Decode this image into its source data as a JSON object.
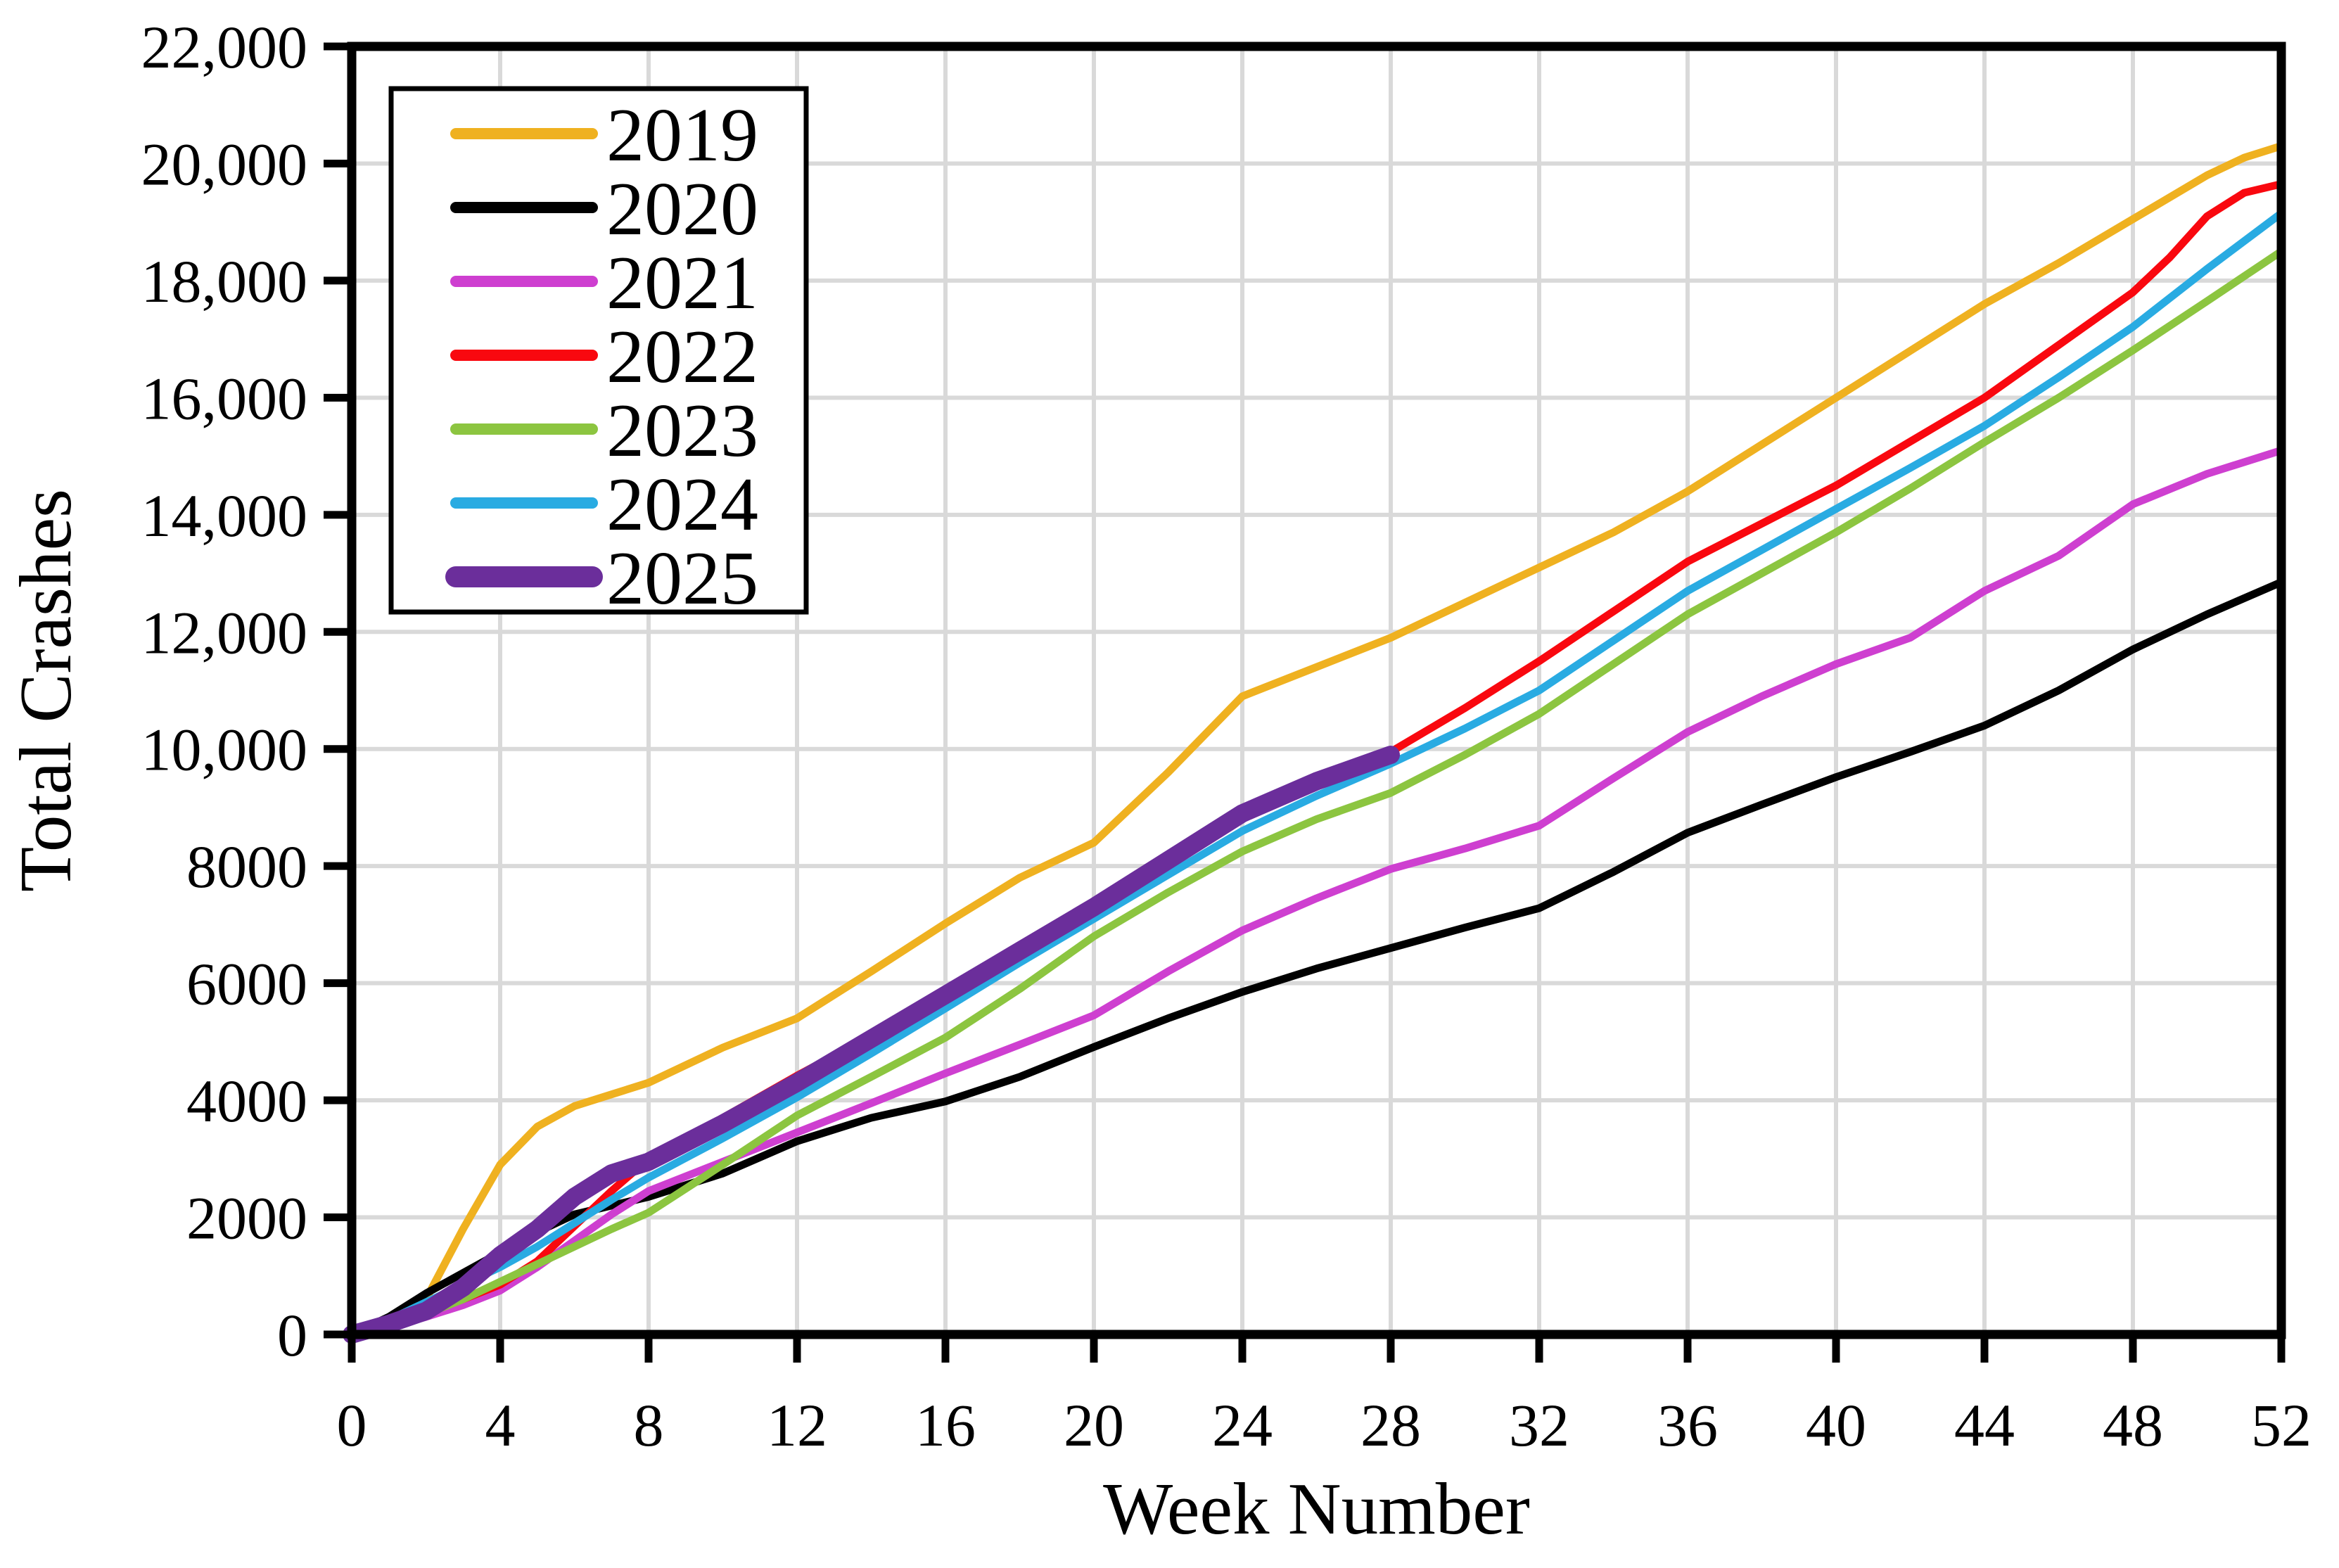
{
  "chart_data": {
    "type": "line",
    "title": "",
    "xlabel": "Week Number",
    "ylabel": "Total Crashes",
    "xlim": [
      0,
      52
    ],
    "ylim": [
      0,
      22000
    ],
    "grid": true,
    "grid_color": "#d9d9d9",
    "axis_color": "#000000",
    "legend_position": "upper-left",
    "x_ticks": [
      0,
      4,
      8,
      12,
      16,
      20,
      24,
      28,
      32,
      36,
      40,
      44,
      48,
      52
    ],
    "x_tick_labels": [
      "0",
      "4",
      "8",
      "12",
      "16",
      "20",
      "24",
      "28",
      "32",
      "36",
      "40",
      "44",
      "48",
      "52"
    ],
    "y_ticks": [
      0,
      2000,
      4000,
      6000,
      8000,
      10000,
      12000,
      14000,
      16000,
      18000,
      20000,
      22000
    ],
    "y_tick_labels": [
      "0",
      "2000",
      "4000",
      "6000",
      "8000",
      "10,000",
      "12,000",
      "14,000",
      "16,000",
      "18,000",
      "20,000",
      "22,000"
    ],
    "series": [
      {
        "name": "2019",
        "color": "#EFB120",
        "line_width": 11,
        "points": [
          [
            0,
            0
          ],
          [
            1,
            200
          ],
          [
            2,
            600
          ],
          [
            3,
            1800
          ],
          [
            4,
            2900
          ],
          [
            5,
            3550
          ],
          [
            6,
            3900
          ],
          [
            7,
            4100
          ],
          [
            8,
            4300
          ],
          [
            10,
            4900
          ],
          [
            12,
            5400
          ],
          [
            14,
            6200
          ],
          [
            16,
            7020
          ],
          [
            18,
            7800
          ],
          [
            20,
            8400
          ],
          [
            22,
            9600
          ],
          [
            24,
            10900
          ],
          [
            26,
            11400
          ],
          [
            28,
            11900
          ],
          [
            30,
            12500
          ],
          [
            32,
            13100
          ],
          [
            34,
            13700
          ],
          [
            36,
            14400
          ],
          [
            38,
            15200
          ],
          [
            40,
            16000
          ],
          [
            42,
            16800
          ],
          [
            44,
            17600
          ],
          [
            46,
            18300
          ],
          [
            48,
            19050
          ],
          [
            50,
            19800
          ],
          [
            51,
            20100
          ],
          [
            52,
            20300
          ]
        ]
      },
      {
        "name": "2020",
        "color": "#000000",
        "line_width": 11,
        "points": [
          [
            0,
            0
          ],
          [
            1,
            300
          ],
          [
            2,
            700
          ],
          [
            3,
            1050
          ],
          [
            4,
            1400
          ],
          [
            5,
            1750
          ],
          [
            6,
            2050
          ],
          [
            7,
            2200
          ],
          [
            8,
            2350
          ],
          [
            10,
            2750
          ],
          [
            12,
            3300
          ],
          [
            14,
            3700
          ],
          [
            16,
            3980
          ],
          [
            18,
            4400
          ],
          [
            20,
            4910
          ],
          [
            22,
            5400
          ],
          [
            24,
            5850
          ],
          [
            26,
            6250
          ],
          [
            28,
            6600
          ],
          [
            30,
            6950
          ],
          [
            32,
            7280
          ],
          [
            34,
            7900
          ],
          [
            36,
            8570
          ],
          [
            38,
            9050
          ],
          [
            40,
            9520
          ],
          [
            42,
            9950
          ],
          [
            44,
            10400
          ],
          [
            46,
            11000
          ],
          [
            48,
            11700
          ],
          [
            50,
            12300
          ],
          [
            52,
            12850
          ]
        ]
      },
      {
        "name": "2021",
        "color": "#CE3FD0",
        "line_width": 11,
        "points": [
          [
            0,
            0
          ],
          [
            1,
            120
          ],
          [
            2,
            300
          ],
          [
            3,
            500
          ],
          [
            4,
            750
          ],
          [
            5,
            1150
          ],
          [
            6,
            1600
          ],
          [
            7,
            2050
          ],
          [
            8,
            2450
          ],
          [
            10,
            2950
          ],
          [
            12,
            3450
          ],
          [
            14,
            3950
          ],
          [
            16,
            4460
          ],
          [
            18,
            4950
          ],
          [
            20,
            5450
          ],
          [
            22,
            6200
          ],
          [
            24,
            6900
          ],
          [
            26,
            7450
          ],
          [
            28,
            7950
          ],
          [
            30,
            8300
          ],
          [
            32,
            8690
          ],
          [
            34,
            9500
          ],
          [
            36,
            10290
          ],
          [
            38,
            10900
          ],
          [
            40,
            11450
          ],
          [
            42,
            11900
          ],
          [
            44,
            12700
          ],
          [
            46,
            13300
          ],
          [
            48,
            14180
          ],
          [
            50,
            14700
          ],
          [
            52,
            15100
          ]
        ]
      },
      {
        "name": "2022",
        "color": "#F9080F",
        "line_width": 11,
        "points": [
          [
            0,
            0
          ],
          [
            1,
            150
          ],
          [
            2,
            400
          ],
          [
            3,
            600
          ],
          [
            4,
            850
          ],
          [
            5,
            1250
          ],
          [
            6,
            1850
          ],
          [
            7,
            2450
          ],
          [
            8,
            3000
          ],
          [
            10,
            3700
          ],
          [
            12,
            4420
          ],
          [
            14,
            5100
          ],
          [
            16,
            5850
          ],
          [
            18,
            6650
          ],
          [
            20,
            7400
          ],
          [
            22,
            8200
          ],
          [
            24,
            8950
          ],
          [
            26,
            9500
          ],
          [
            28,
            9950
          ],
          [
            30,
            10700
          ],
          [
            32,
            11500
          ],
          [
            34,
            12350
          ],
          [
            36,
            13200
          ],
          [
            38,
            13850
          ],
          [
            40,
            14500
          ],
          [
            42,
            15250
          ],
          [
            44,
            16000
          ],
          [
            46,
            16900
          ],
          [
            48,
            17800
          ],
          [
            49,
            18400
          ],
          [
            50,
            19100
          ],
          [
            51,
            19500
          ],
          [
            52,
            19650
          ]
        ]
      },
      {
        "name": "2023",
        "color": "#8CC540",
        "line_width": 11,
        "points": [
          [
            0,
            0
          ],
          [
            1,
            100
          ],
          [
            2,
            350
          ],
          [
            3,
            600
          ],
          [
            4,
            900
          ],
          [
            5,
            1200
          ],
          [
            6,
            1500
          ],
          [
            7,
            1800
          ],
          [
            8,
            2080
          ],
          [
            10,
            2900
          ],
          [
            12,
            3740
          ],
          [
            14,
            4400
          ],
          [
            16,
            5070
          ],
          [
            18,
            5900
          ],
          [
            20,
            6800
          ],
          [
            22,
            7550
          ],
          [
            24,
            8250
          ],
          [
            26,
            8800
          ],
          [
            28,
            9250
          ],
          [
            30,
            9900
          ],
          [
            32,
            10600
          ],
          [
            34,
            11450
          ],
          [
            36,
            12300
          ],
          [
            38,
            13000
          ],
          [
            40,
            13700
          ],
          [
            42,
            14450
          ],
          [
            44,
            15240
          ],
          [
            46,
            16000
          ],
          [
            48,
            16810
          ],
          [
            50,
            17650
          ],
          [
            52,
            18500
          ]
        ]
      },
      {
        "name": "2024",
        "color": "#29ABE2",
        "line_width": 11,
        "points": [
          [
            0,
            0
          ],
          [
            1,
            250
          ],
          [
            2,
            550
          ],
          [
            3,
            850
          ],
          [
            4,
            1150
          ],
          [
            5,
            1500
          ],
          [
            6,
            1900
          ],
          [
            7,
            2300
          ],
          [
            8,
            2680
          ],
          [
            10,
            3350
          ],
          [
            12,
            4050
          ],
          [
            14,
            4800
          ],
          [
            16,
            5570
          ],
          [
            18,
            6350
          ],
          [
            20,
            7100
          ],
          [
            22,
            7850
          ],
          [
            24,
            8600
          ],
          [
            26,
            9200
          ],
          [
            28,
            9750
          ],
          [
            30,
            10350
          ],
          [
            32,
            11000
          ],
          [
            34,
            11850
          ],
          [
            36,
            12700
          ],
          [
            38,
            13400
          ],
          [
            40,
            14100
          ],
          [
            42,
            14800
          ],
          [
            44,
            15520
          ],
          [
            46,
            16350
          ],
          [
            48,
            17210
          ],
          [
            50,
            18200
          ],
          [
            52,
            19150
          ]
        ]
      },
      {
        "name": "2025",
        "color": "#6B2E9B",
        "line_width": 26,
        "points": [
          [
            0,
            0
          ],
          [
            1,
            180
          ],
          [
            2,
            400
          ],
          [
            3,
            800
          ],
          [
            4,
            1350
          ],
          [
            5,
            1800
          ],
          [
            6,
            2350
          ],
          [
            7,
            2750
          ],
          [
            8,
            2950
          ],
          [
            10,
            3600
          ],
          [
            12,
            4300
          ],
          [
            14,
            5050
          ],
          [
            16,
            5800
          ],
          [
            18,
            6550
          ],
          [
            20,
            7300
          ],
          [
            22,
            8100
          ],
          [
            24,
            8900
          ],
          [
            26,
            9450
          ],
          [
            28,
            9900
          ]
        ]
      }
    ]
  }
}
